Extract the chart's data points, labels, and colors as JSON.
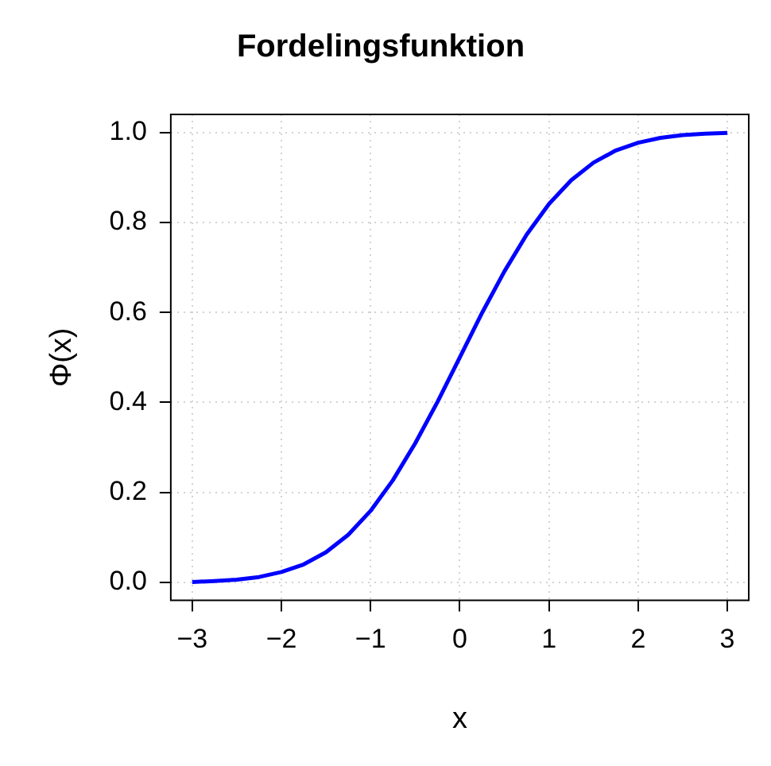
{
  "chart_data": {
    "type": "line",
    "title": "Fordelingsfunktion",
    "xlabel": "x",
    "ylabel": "Φ(x)",
    "x": [
      -3,
      -2.75,
      -2.5,
      -2.25,
      -2,
      -1.75,
      -1.5,
      -1.25,
      -1,
      -0.75,
      -0.5,
      -0.25,
      0,
      0.25,
      0.5,
      0.75,
      1,
      1.25,
      1.5,
      1.75,
      2,
      2.25,
      2.5,
      2.75,
      3
    ],
    "series": [
      {
        "color": "#0000ff",
        "values": [
          0.001,
          0.003,
          0.006,
          0.012,
          0.023,
          0.04,
          0.067,
          0.106,
          0.159,
          0.227,
          0.309,
          0.401,
          0.5,
          0.599,
          0.691,
          0.773,
          0.841,
          0.894,
          0.933,
          0.96,
          0.977,
          0.988,
          0.994,
          0.997,
          0.999
        ]
      }
    ],
    "xlim": [
      -3.24,
      3.24
    ],
    "ylim": [
      -0.04,
      1.04
    ],
    "xticks": [
      {
        "value": -3,
        "label": "−3"
      },
      {
        "value": -2,
        "label": "−2"
      },
      {
        "value": -1,
        "label": "−1"
      },
      0,
      1,
      2,
      3
    ],
    "yticks": [
      {
        "value": 0,
        "label": "0.0"
      },
      {
        "value": 0.2,
        "label": "0.2"
      },
      {
        "value": 0.4,
        "label": "0.4"
      },
      {
        "value": 0.6,
        "label": "0.6"
      },
      {
        "value": 0.8,
        "label": "0.8"
      },
      {
        "value": 1,
        "label": "1.0"
      }
    ],
    "grid": true,
    "legend": false,
    "marker": "none",
    "line_style": "solid"
  }
}
